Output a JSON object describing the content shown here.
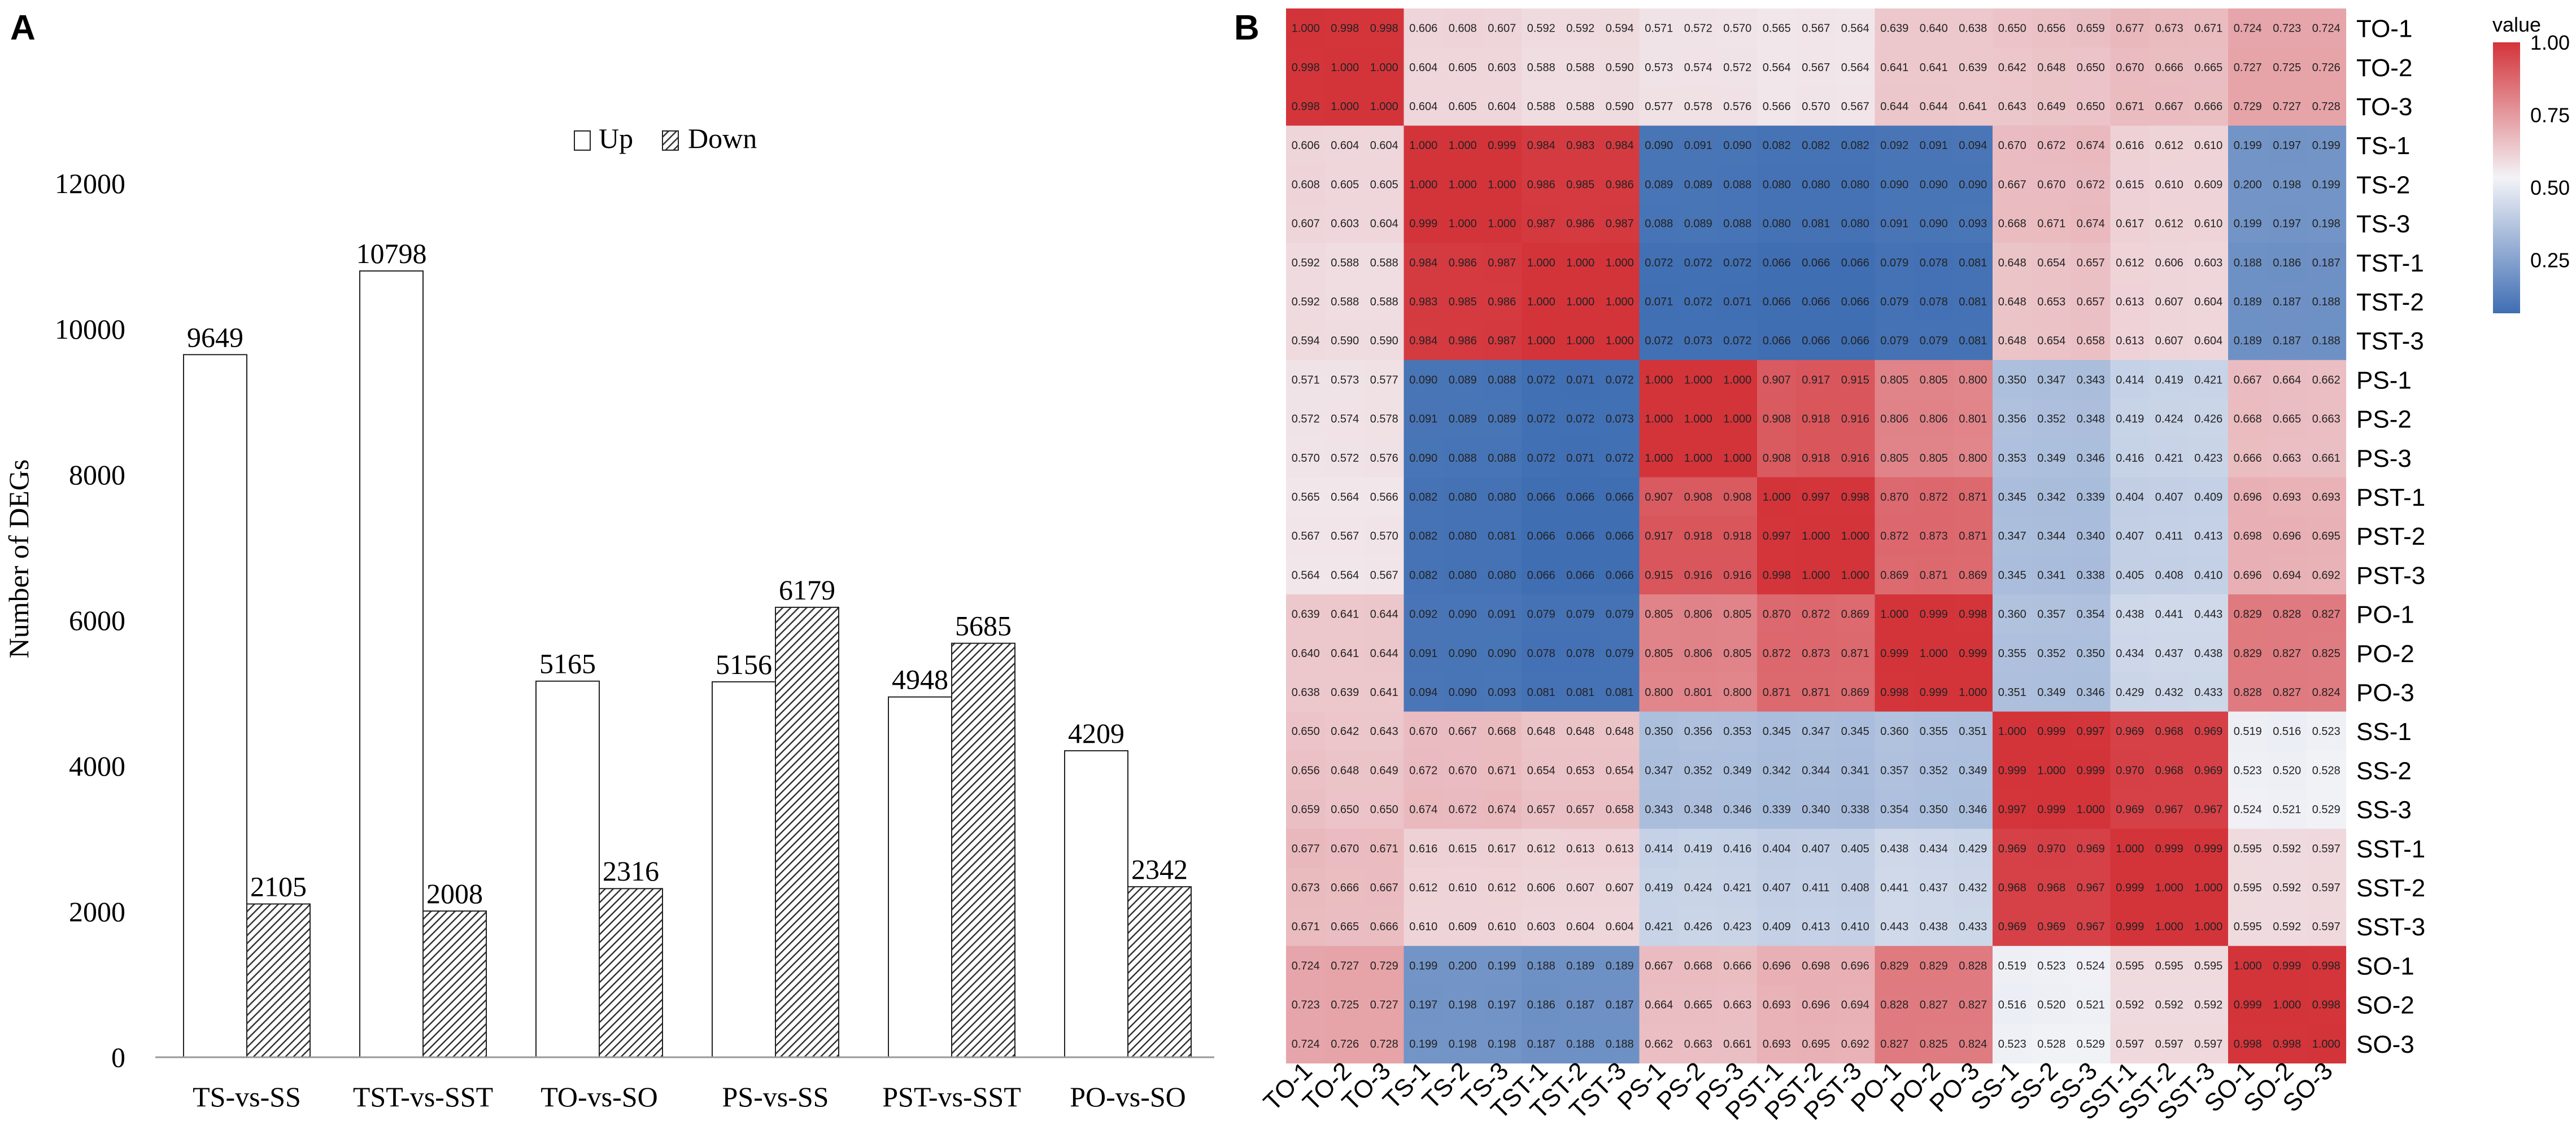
{
  "chart_data": [
    {
      "type": "bar",
      "panel_label": "A",
      "title": "",
      "xlabel": "",
      "ylabel": "Number of DEGs",
      "ylim": [
        0,
        12000
      ],
      "yticks": [
        0,
        2000,
        4000,
        6000,
        8000,
        10000,
        12000
      ],
      "legend_position": "top-center",
      "categories": [
        "TS-vs-SS",
        "TST-vs-SST",
        "TO-vs-SO",
        "PS-vs-SS",
        "PST-vs-SST",
        "PO-vs-SO"
      ],
      "series": [
        {
          "name": "Up",
          "fill": "white",
          "values": [
            9649,
            10798,
            5165,
            5156,
            4948,
            4209
          ]
        },
        {
          "name": "Down",
          "fill": "hatched",
          "values": [
            2105,
            2008,
            2316,
            6179,
            5685,
            2342
          ]
        }
      ]
    },
    {
      "type": "heatmap",
      "panel_label": "B",
      "title": "",
      "rows": [
        "TO-1",
        "TO-2",
        "TO-3",
        "TS-1",
        "TS-2",
        "TS-3",
        "TST-1",
        "TST-2",
        "TST-3",
        "PS-1",
        "PS-2",
        "PS-3",
        "PST-1",
        "PST-2",
        "PST-3",
        "PO-1",
        "PO-2",
        "PO-3",
        "SS-1",
        "SS-2",
        "SS-3",
        "SST-1",
        "SST-2",
        "SST-3",
        "SO-1",
        "SO-2",
        "SO-3"
      ],
      "columns": [
        "TO-1",
        "TO-2",
        "TO-3",
        "TS-1",
        "TS-2",
        "TS-3",
        "TST-1",
        "TST-2",
        "TST-3",
        "PS-1",
        "PS-2",
        "PS-3",
        "PST-1",
        "PST-2",
        "PST-3",
        "PO-1",
        "PO-2",
        "PO-3",
        "SS-1",
        "SS-2",
        "SS-3",
        "SST-1",
        "SST-2",
        "SST-3",
        "SO-1",
        "SO-2",
        "SO-3"
      ],
      "values": [
        [
          "1.000",
          "0.998",
          "0.998",
          "0.606",
          "0.608",
          "0.607",
          "0.592",
          "0.592",
          "0.594",
          "0.571",
          "0.572",
          "0.570",
          "0.565",
          "0.567",
          "0.564",
          "0.639",
          "0.640",
          "0.638",
          "0.650",
          "0.656",
          "0.659",
          "0.677",
          "0.673",
          "0.671",
          "0.724",
          "0.723",
          "0.724"
        ],
        [
          "0.998",
          "1.000",
          "1.000",
          "0.604",
          "0.605",
          "0.603",
          "0.588",
          "0.588",
          "0.590",
          "0.573",
          "0.574",
          "0.572",
          "0.564",
          "0.567",
          "0.564",
          "0.641",
          "0.641",
          "0.639",
          "0.642",
          "0.648",
          "0.650",
          "0.670",
          "0.666",
          "0.665",
          "0.727",
          "0.725",
          "0.726"
        ],
        [
          "0.998",
          "1.000",
          "1.000",
          "0.604",
          "0.605",
          "0.604",
          "0.588",
          "0.588",
          "0.590",
          "0.577",
          "0.578",
          "0.576",
          "0.566",
          "0.570",
          "0.567",
          "0.644",
          "0.644",
          "0.641",
          "0.643",
          "0.649",
          "0.650",
          "0.671",
          "0.667",
          "0.666",
          "0.729",
          "0.727",
          "0.728"
        ],
        [
          "0.606",
          "0.604",
          "0.604",
          "1.000",
          "1.000",
          "0.999",
          "0.984",
          "0.983",
          "0.984",
          "0.090",
          "0.091",
          "0.090",
          "0.082",
          "0.082",
          "0.082",
          "0.092",
          "0.091",
          "0.094",
          "0.670",
          "0.672",
          "0.674",
          "0.616",
          "0.612",
          "0.610",
          "0.199",
          "0.197",
          "0.199"
        ],
        [
          "0.608",
          "0.605",
          "0.605",
          "1.000",
          "1.000",
          "1.000",
          "0.986",
          "0.985",
          "0.986",
          "0.089",
          "0.089",
          "0.088",
          "0.080",
          "0.080",
          "0.080",
          "0.090",
          "0.090",
          "0.090",
          "0.667",
          "0.670",
          "0.672",
          "0.615",
          "0.610",
          "0.609",
          "0.200",
          "0.198",
          "0.199"
        ],
        [
          "0.607",
          "0.603",
          "0.604",
          "0.999",
          "1.000",
          "1.000",
          "0.987",
          "0.986",
          "0.987",
          "0.088",
          "0.089",
          "0.088",
          "0.080",
          "0.081",
          "0.080",
          "0.091",
          "0.090",
          "0.093",
          "0.668",
          "0.671",
          "0.674",
          "0.617",
          "0.612",
          "0.610",
          "0.199",
          "0.197",
          "0.198"
        ],
        [
          "0.592",
          "0.588",
          "0.588",
          "0.984",
          "0.986",
          "0.987",
          "1.000",
          "1.000",
          "1.000",
          "0.072",
          "0.072",
          "0.072",
          "0.066",
          "0.066",
          "0.066",
          "0.079",
          "0.078",
          "0.081",
          "0.648",
          "0.654",
          "0.657",
          "0.612",
          "0.606",
          "0.603",
          "0.188",
          "0.186",
          "0.187"
        ],
        [
          "0.592",
          "0.588",
          "0.588",
          "0.983",
          "0.985",
          "0.986",
          "1.000",
          "1.000",
          "1.000",
          "0.071",
          "0.072",
          "0.071",
          "0.066",
          "0.066",
          "0.066",
          "0.079",
          "0.078",
          "0.081",
          "0.648",
          "0.653",
          "0.657",
          "0.613",
          "0.607",
          "0.604",
          "0.189",
          "0.187",
          "0.188"
        ],
        [
          "0.594",
          "0.590",
          "0.590",
          "0.984",
          "0.986",
          "0.987",
          "1.000",
          "1.000",
          "1.000",
          "0.072",
          "0.073",
          "0.072",
          "0.066",
          "0.066",
          "0.066",
          "0.079",
          "0.079",
          "0.081",
          "0.648",
          "0.654",
          "0.658",
          "0.613",
          "0.607",
          "0.604",
          "0.189",
          "0.187",
          "0.188"
        ],
        [
          "0.571",
          "0.573",
          "0.577",
          "0.090",
          "0.089",
          "0.088",
          "0.072",
          "0.071",
          "0.072",
          "1.000",
          "1.000",
          "1.000",
          "0.907",
          "0.917",
          "0.915",
          "0.805",
          "0.805",
          "0.800",
          "0.350",
          "0.347",
          "0.343",
          "0.414",
          "0.419",
          "0.421",
          "0.667",
          "0.664",
          "0.662"
        ],
        [
          "0.572",
          "0.574",
          "0.578",
          "0.091",
          "0.089",
          "0.089",
          "0.072",
          "0.072",
          "0.073",
          "1.000",
          "1.000",
          "1.000",
          "0.908",
          "0.918",
          "0.916",
          "0.806",
          "0.806",
          "0.801",
          "0.356",
          "0.352",
          "0.348",
          "0.419",
          "0.424",
          "0.426",
          "0.668",
          "0.665",
          "0.663"
        ],
        [
          "0.570",
          "0.572",
          "0.576",
          "0.090",
          "0.088",
          "0.088",
          "0.072",
          "0.071",
          "0.072",
          "1.000",
          "1.000",
          "1.000",
          "0.908",
          "0.918",
          "0.916",
          "0.805",
          "0.805",
          "0.800",
          "0.353",
          "0.349",
          "0.346",
          "0.416",
          "0.421",
          "0.423",
          "0.666",
          "0.663",
          "0.661"
        ],
        [
          "0.565",
          "0.564",
          "0.566",
          "0.082",
          "0.080",
          "0.080",
          "0.066",
          "0.066",
          "0.066",
          "0.907",
          "0.908",
          "0.908",
          "1.000",
          "0.997",
          "0.998",
          "0.870",
          "0.872",
          "0.871",
          "0.345",
          "0.342",
          "0.339",
          "0.404",
          "0.407",
          "0.409",
          "0.696",
          "0.693",
          "0.693"
        ],
        [
          "0.567",
          "0.567",
          "0.570",
          "0.082",
          "0.080",
          "0.081",
          "0.066",
          "0.066",
          "0.066",
          "0.917",
          "0.918",
          "0.918",
          "0.997",
          "1.000",
          "1.000",
          "0.872",
          "0.873",
          "0.871",
          "0.347",
          "0.344",
          "0.340",
          "0.407",
          "0.411",
          "0.413",
          "0.698",
          "0.696",
          "0.695"
        ],
        [
          "0.564",
          "0.564",
          "0.567",
          "0.082",
          "0.080",
          "0.080",
          "0.066",
          "0.066",
          "0.066",
          "0.915",
          "0.916",
          "0.916",
          "0.998",
          "1.000",
          "1.000",
          "0.869",
          "0.871",
          "0.869",
          "0.345",
          "0.341",
          "0.338",
          "0.405",
          "0.408",
          "0.410",
          "0.696",
          "0.694",
          "0.692"
        ],
        [
          "0.639",
          "0.641",
          "0.644",
          "0.092",
          "0.090",
          "0.091",
          "0.079",
          "0.079",
          "0.079",
          "0.805",
          "0.806",
          "0.805",
          "0.870",
          "0.872",
          "0.869",
          "1.000",
          "0.999",
          "0.998",
          "0.360",
          "0.357",
          "0.354",
          "0.438",
          "0.441",
          "0.443",
          "0.829",
          "0.828",
          "0.827"
        ],
        [
          "0.640",
          "0.641",
          "0.644",
          "0.091",
          "0.090",
          "0.090",
          "0.078",
          "0.078",
          "0.079",
          "0.805",
          "0.806",
          "0.805",
          "0.872",
          "0.873",
          "0.871",
          "0.999",
          "1.000",
          "0.999",
          "0.355",
          "0.352",
          "0.350",
          "0.434",
          "0.437",
          "0.438",
          "0.829",
          "0.827",
          "0.825"
        ],
        [
          "0.638",
          "0.639",
          "0.641",
          "0.094",
          "0.090",
          "0.093",
          "0.081",
          "0.081",
          "0.081",
          "0.800",
          "0.801",
          "0.800",
          "0.871",
          "0.871",
          "0.869",
          "0.998",
          "0.999",
          "1.000",
          "0.351",
          "0.349",
          "0.346",
          "0.429",
          "0.432",
          "0.433",
          "0.828",
          "0.827",
          "0.824"
        ],
        [
          "0.650",
          "0.642",
          "0.643",
          "0.670",
          "0.667",
          "0.668",
          "0.648",
          "0.648",
          "0.648",
          "0.350",
          "0.356",
          "0.353",
          "0.345",
          "0.347",
          "0.345",
          "0.360",
          "0.355",
          "0.351",
          "1.000",
          "0.999",
          "0.997",
          "0.969",
          "0.968",
          "0.969",
          "0.519",
          "0.516",
          "0.523"
        ],
        [
          "0.656",
          "0.648",
          "0.649",
          "0.672",
          "0.670",
          "0.671",
          "0.654",
          "0.653",
          "0.654",
          "0.347",
          "0.352",
          "0.349",
          "0.342",
          "0.344",
          "0.341",
          "0.357",
          "0.352",
          "0.349",
          "0.999",
          "1.000",
          "0.999",
          "0.970",
          "0.968",
          "0.969",
          "0.523",
          "0.520",
          "0.528"
        ],
        [
          "0.659",
          "0.650",
          "0.650",
          "0.674",
          "0.672",
          "0.674",
          "0.657",
          "0.657",
          "0.658",
          "0.343",
          "0.348",
          "0.346",
          "0.339",
          "0.340",
          "0.338",
          "0.354",
          "0.350",
          "0.346",
          "0.997",
          "0.999",
          "1.000",
          "0.969",
          "0.967",
          "0.967",
          "0.524",
          "0.521",
          "0.529"
        ],
        [
          "0.677",
          "0.670",
          "0.671",
          "0.616",
          "0.615",
          "0.617",
          "0.612",
          "0.613",
          "0.613",
          "0.414",
          "0.419",
          "0.416",
          "0.404",
          "0.407",
          "0.405",
          "0.438",
          "0.434",
          "0.429",
          "0.969",
          "0.970",
          "0.969",
          "1.000",
          "0.999",
          "0.999",
          "0.595",
          "0.592",
          "0.597"
        ],
        [
          "0.673",
          "0.666",
          "0.667",
          "0.612",
          "0.610",
          "0.612",
          "0.606",
          "0.607",
          "0.607",
          "0.419",
          "0.424",
          "0.421",
          "0.407",
          "0.411",
          "0.408",
          "0.441",
          "0.437",
          "0.432",
          "0.968",
          "0.968",
          "0.967",
          "0.999",
          "1.000",
          "1.000",
          "0.595",
          "0.592",
          "0.597"
        ],
        [
          "0.671",
          "0.665",
          "0.666",
          "0.610",
          "0.609",
          "0.610",
          "0.603",
          "0.604",
          "0.604",
          "0.421",
          "0.426",
          "0.423",
          "0.409",
          "0.413",
          "0.410",
          "0.443",
          "0.438",
          "0.433",
          "0.969",
          "0.969",
          "0.967",
          "0.999",
          "1.000",
          "1.000",
          "0.595",
          "0.592",
          "0.597"
        ],
        [
          "0.724",
          "0.727",
          "0.729",
          "0.199",
          "0.200",
          "0.199",
          "0.188",
          "0.189",
          "0.189",
          "0.667",
          "0.668",
          "0.666",
          "0.696",
          "0.698",
          "0.696",
          "0.829",
          "0.829",
          "0.828",
          "0.519",
          "0.523",
          "0.524",
          "0.595",
          "0.595",
          "0.595",
          "1.000",
          "0.999",
          "0.998"
        ],
        [
          "0.723",
          "0.725",
          "0.727",
          "0.197",
          "0.198",
          "0.197",
          "0.186",
          "0.187",
          "0.187",
          "0.664",
          "0.665",
          "0.663",
          "0.693",
          "0.696",
          "0.694",
          "0.828",
          "0.827",
          "0.827",
          "0.516",
          "0.520",
          "0.521",
          "0.592",
          "0.592",
          "0.592",
          "0.999",
          "1.000",
          "0.998"
        ],
        [
          "0.724",
          "0.726",
          "0.728",
          "0.199",
          "0.198",
          "0.198",
          "0.187",
          "0.188",
          "0.188",
          "0.662",
          "0.663",
          "0.661",
          "0.693",
          "0.695",
          "0.692",
          "0.827",
          "0.825",
          "0.824",
          "0.523",
          "0.528",
          "0.529",
          "0.597",
          "0.597",
          "0.597",
          "0.998",
          "0.998",
          "1.000"
        ]
      ],
      "colorbar": {
        "title": "value",
        "ticks": [
          "0.25",
          "0.50",
          "0.75",
          "1.00"
        ],
        "min_color": "#3f6eb3",
        "mid_color": "#f3f3f7",
        "max_color": "#d3343a"
      }
    }
  ]
}
